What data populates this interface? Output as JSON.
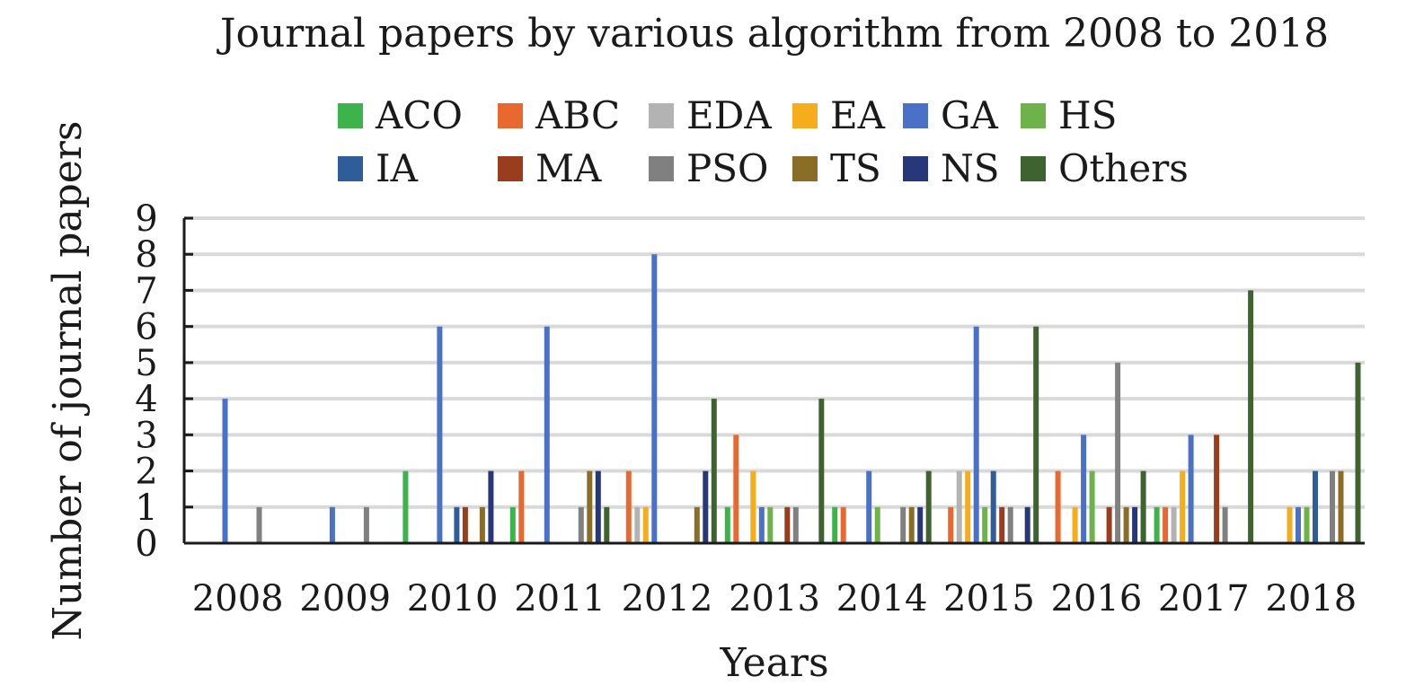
{
  "chart_data": {
    "type": "bar",
    "title": "Journal papers by various algorithm from 2008 to 2018",
    "xlabel": "Years",
    "ylabel": "Number of journal papers",
    "ylim": [
      0,
      9
    ],
    "yticks": [
      0,
      1,
      2,
      3,
      4,
      5,
      6,
      7,
      8,
      9
    ],
    "grid": true,
    "legend_position": "top",
    "categories": [
      "2008",
      "2009",
      "2010",
      "2011",
      "2012",
      "2013",
      "2014",
      "2015",
      "2016",
      "2017",
      "2018"
    ],
    "series": [
      {
        "name": "ACO",
        "color": "#3cb44b",
        "values": [
          0,
          0,
          2,
          1,
          0,
          1,
          1,
          0,
          0,
          1,
          0
        ]
      },
      {
        "name": "ABC",
        "color": "#e8682f",
        "values": [
          0,
          0,
          0,
          2,
          2,
          3,
          1,
          1,
          2,
          1,
          0
        ]
      },
      {
        "name": "EDA",
        "color": "#b3b3b3",
        "values": [
          0,
          0,
          0,
          0,
          1,
          0,
          0,
          2,
          0,
          1,
          0
        ]
      },
      {
        "name": "EA",
        "color": "#f5ad1c",
        "values": [
          0,
          0,
          0,
          0,
          1,
          2,
          0,
          2,
          1,
          2,
          1
        ]
      },
      {
        "name": "GA",
        "color": "#4a70c8",
        "values": [
          4,
          1,
          6,
          6,
          8,
          1,
          2,
          6,
          3,
          3,
          1
        ]
      },
      {
        "name": "HS",
        "color": "#6db34a",
        "values": [
          0,
          0,
          0,
          0,
          0,
          1,
          1,
          1,
          2,
          0,
          1
        ]
      },
      {
        "name": "IA",
        "color": "#2f5d9a",
        "values": [
          0,
          0,
          1,
          0,
          0,
          0,
          0,
          2,
          0,
          0,
          2
        ]
      },
      {
        "name": "MA",
        "color": "#9a3d1e",
        "values": [
          0,
          0,
          1,
          0,
          0,
          1,
          0,
          1,
          1,
          3,
          0
        ]
      },
      {
        "name": "PSO",
        "color": "#808080",
        "values": [
          1,
          1,
          0,
          1,
          0,
          1,
          1,
          1,
          5,
          1,
          2
        ]
      },
      {
        "name": "TS",
        "color": "#8a6e27",
        "values": [
          0,
          0,
          1,
          2,
          1,
          0,
          1,
          0,
          1,
          0,
          2
        ]
      },
      {
        "name": "NS",
        "color": "#27377a",
        "values": [
          0,
          0,
          2,
          2,
          2,
          0,
          1,
          1,
          1,
          0,
          0
        ]
      },
      {
        "name": "Others",
        "color": "#3f6330",
        "values": [
          0,
          0,
          0,
          1,
          4,
          4,
          2,
          6,
          2,
          7,
          5
        ]
      }
    ]
  }
}
